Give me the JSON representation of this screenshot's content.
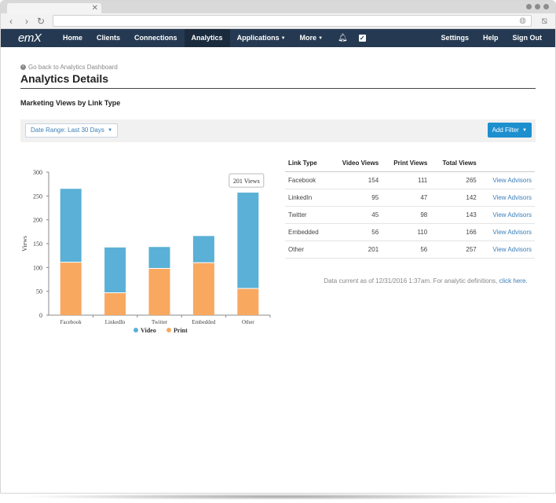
{
  "nav": {
    "logo": "emX",
    "items": [
      {
        "label": "Home"
      },
      {
        "label": "Clients"
      },
      {
        "label": "Connections"
      },
      {
        "label": "Analytics"
      },
      {
        "label": "Applications"
      },
      {
        "label": "More"
      }
    ],
    "right": [
      {
        "label": "Settings"
      },
      {
        "label": "Help"
      },
      {
        "label": "Sign Out"
      }
    ]
  },
  "page": {
    "back_link": "Go back to Analytics Dashboard",
    "title": "Analytics Details",
    "section_title": "Marketing Views by Link Type",
    "date_range": "Date Range: Last 30 Days",
    "add_filter": "Add Filter",
    "data_note": "Data current as of 12/31/2016 1:37am. For analytic definitions,",
    "data_note_link": "click here."
  },
  "table": {
    "headers": [
      "Link Type",
      "Video Views",
      "Print Views",
      "Total Views",
      ""
    ],
    "rows": [
      {
        "type": "Facebook",
        "video": "154",
        "print": "111",
        "total": "265",
        "action": "View Advisors"
      },
      {
        "type": "LinkedIn",
        "video": "95",
        "print": "47",
        "total": "142",
        "action": "View Advisors"
      },
      {
        "type": "Twitter",
        "video": "45",
        "print": "98",
        "total": "143",
        "action": "View Advisors"
      },
      {
        "type": "Embedded",
        "video": "56",
        "print": "110",
        "total": "166",
        "action": "View Advisors"
      },
      {
        "type": "Other",
        "video": "201",
        "print": "56",
        "total": "257",
        "action": "View Advisors"
      }
    ]
  },
  "chart_data": {
    "type": "bar",
    "stacked": true,
    "categories": [
      "Facebook",
      "LinkedIn",
      "Twitter",
      "Embedded",
      "Other"
    ],
    "series": [
      {
        "name": "Video",
        "values": [
          154,
          95,
          45,
          56,
          201
        ],
        "color": "#5ab0d6"
      },
      {
        "name": "Print",
        "values": [
          111,
          47,
          98,
          110,
          56
        ],
        "color": "#f9a860"
      }
    ],
    "ylabel": "Views",
    "ylim": [
      0,
      300
    ],
    "yticks": [
      0,
      50,
      100,
      150,
      200,
      250,
      300
    ],
    "grid": false,
    "legend": "bottom",
    "tooltip": "201 Views"
  },
  "colors": {
    "navbar": "#253a52",
    "accent": "#1c8fcf",
    "link": "#3b7fb8"
  }
}
